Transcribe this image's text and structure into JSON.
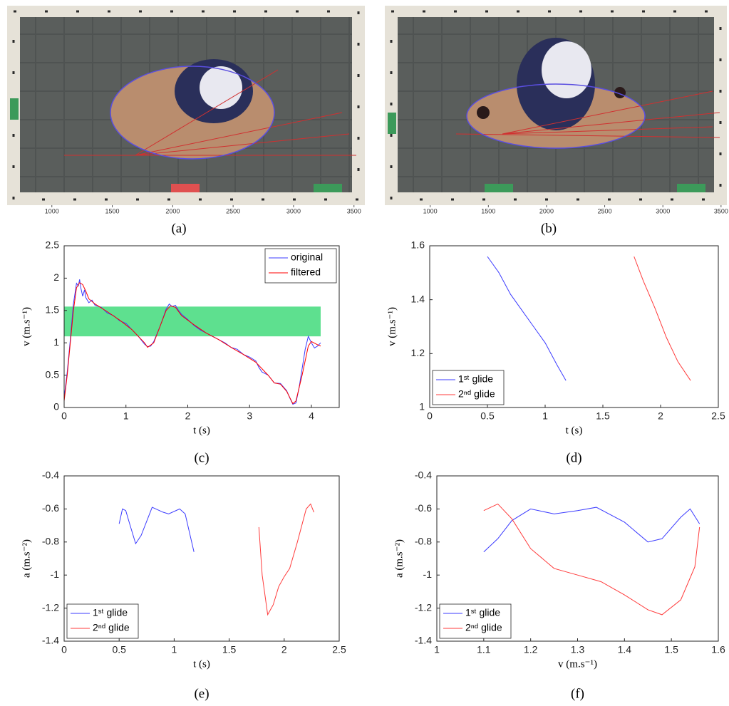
{
  "chart_data": [
    {
      "type": "image",
      "caption": "(a)",
      "xlim": [
        630,
        3590
      ],
      "xticks": [
        1000,
        1500,
        2000,
        2500,
        3000,
        3500
      ]
    },
    {
      "type": "image",
      "caption": "(b)",
      "xlim": [
        610,
        3550
      ],
      "xticks": [
        1000,
        1500,
        2000,
        2500,
        3000,
        3500
      ]
    },
    {
      "type": "line",
      "caption": "(c)",
      "xlabel": "t (s)",
      "ylabel": "v (m.s⁻¹)",
      "xlim": [
        0,
        4.45
      ],
      "xticks": [
        0,
        1,
        2,
        3,
        4
      ],
      "ylim": [
        0,
        2.5
      ],
      "yticks": [
        0,
        0.5,
        1,
        1.5,
        2,
        2.5
      ],
      "legend": "upper right",
      "band": {
        "x": [
          0,
          4.15
        ],
        "y": [
          1.1,
          1.56
        ],
        "color": "#5ee08f"
      },
      "series": [
        {
          "name": "original",
          "color": "#3b3bff",
          "x": [
            0,
            0.05,
            0.1,
            0.15,
            0.2,
            0.23,
            0.25,
            0.27,
            0.3,
            0.33,
            0.35,
            0.4,
            0.45,
            0.5,
            0.6,
            0.7,
            0.8,
            0.9,
            1.0,
            1.1,
            1.2,
            1.3,
            1.35,
            1.4,
            1.45,
            1.55,
            1.65,
            1.7,
            1.75,
            1.8,
            1.85,
            1.9,
            2.0,
            2.1,
            2.2,
            2.3,
            2.4,
            2.5,
            2.6,
            2.7,
            2.8,
            2.9,
            3.0,
            3.1,
            3.15,
            3.2,
            3.3,
            3.4,
            3.5,
            3.6,
            3.65,
            3.7,
            3.75,
            3.8,
            3.85,
            3.9,
            3.95,
            4.0,
            4.05,
            4.1,
            4.15
          ],
          "values": [
            0.15,
            0.55,
            1.05,
            1.6,
            1.92,
            1.88,
            1.98,
            1.85,
            1.72,
            1.82,
            1.7,
            1.62,
            1.66,
            1.58,
            1.55,
            1.46,
            1.42,
            1.34,
            1.3,
            1.2,
            1.1,
            0.98,
            0.94,
            0.95,
            1.02,
            1.25,
            1.52,
            1.6,
            1.56,
            1.58,
            1.5,
            1.44,
            1.36,
            1.27,
            1.2,
            1.15,
            1.1,
            1.05,
            1.0,
            0.93,
            0.9,
            0.82,
            0.78,
            0.72,
            0.62,
            0.55,
            0.5,
            0.38,
            0.37,
            0.26,
            0.15,
            0.05,
            0.07,
            0.3,
            0.6,
            0.9,
            1.1,
            1.0,
            0.92,
            0.95,
            1.0
          ]
        },
        {
          "name": "filtered",
          "color": "#ff0000",
          "x": [
            0,
            0.05,
            0.1,
            0.15,
            0.2,
            0.25,
            0.3,
            0.35,
            0.4,
            0.5,
            0.7,
            0.9,
            1.1,
            1.3,
            1.35,
            1.45,
            1.55,
            1.65,
            1.72,
            1.8,
            1.9,
            2.1,
            2.3,
            2.5,
            2.7,
            2.9,
            3.1,
            3.3,
            3.4,
            3.5,
            3.6,
            3.7,
            3.75,
            3.85,
            3.95,
            4.0,
            4.1,
            4.15
          ],
          "values": [
            0.1,
            0.5,
            1.0,
            1.5,
            1.85,
            1.93,
            1.9,
            1.8,
            1.68,
            1.6,
            1.48,
            1.35,
            1.2,
            1.0,
            0.93,
            1.0,
            1.25,
            1.5,
            1.57,
            1.55,
            1.42,
            1.28,
            1.15,
            1.05,
            0.93,
            0.82,
            0.7,
            0.5,
            0.38,
            0.36,
            0.25,
            0.06,
            0.1,
            0.5,
            0.95,
            1.02,
            0.97,
            0.95
          ]
        }
      ]
    },
    {
      "type": "line",
      "caption": "(d)",
      "xlabel": "t (s)",
      "ylabel": "v (m.s⁻¹)",
      "xlim": [
        0,
        2.5
      ],
      "xticks": [
        0,
        0.5,
        1,
        1.5,
        2,
        2.5
      ],
      "ylim": [
        1,
        1.6
      ],
      "yticks": [
        1,
        1.2,
        1.4,
        1.6
      ],
      "legend": "lower left",
      "series": [
        {
          "name": "1ˢᵗ glide",
          "color": "#3b3bff",
          "x": [
            0.5,
            0.6,
            0.7,
            0.8,
            0.9,
            1.0,
            1.1,
            1.18
          ],
          "values": [
            1.56,
            1.5,
            1.42,
            1.36,
            1.3,
            1.24,
            1.16,
            1.1
          ]
        },
        {
          "name": "2ⁿᵈ glide",
          "color": "#ff3b3b",
          "x": [
            1.77,
            1.85,
            1.95,
            2.05,
            2.15,
            2.26
          ],
          "values": [
            1.56,
            1.47,
            1.37,
            1.26,
            1.17,
            1.1
          ]
        }
      ]
    },
    {
      "type": "line",
      "caption": "(e)",
      "xlabel": "t (s)",
      "ylabel": "a (m.s⁻²)",
      "xlim": [
        0,
        2.5
      ],
      "xticks": [
        0,
        0.5,
        1,
        1.5,
        2,
        2.5
      ],
      "ylim": [
        -1.4,
        -0.4
      ],
      "yticks": [
        -1.4,
        -1.2,
        -1,
        -0.8,
        -0.6,
        -0.4
      ],
      "legend": "lower left",
      "series": [
        {
          "name": "1ˢᵗ glide",
          "color": "#3b3bff",
          "x": [
            0.5,
            0.53,
            0.56,
            0.6,
            0.65,
            0.7,
            0.8,
            0.9,
            0.95,
            1.05,
            1.1,
            1.18
          ],
          "values": [
            -0.69,
            -0.6,
            -0.61,
            -0.7,
            -0.81,
            -0.76,
            -0.59,
            -0.62,
            -0.63,
            -0.6,
            -0.63,
            -0.86
          ]
        },
        {
          "name": "2ⁿᵈ glide",
          "color": "#ff3b3b",
          "x": [
            1.77,
            1.8,
            1.85,
            1.9,
            1.95,
            2.0,
            2.05,
            2.12,
            2.2,
            2.24,
            2.27
          ],
          "values": [
            -0.71,
            -1.0,
            -1.24,
            -1.18,
            -1.07,
            -1.01,
            -0.96,
            -0.8,
            -0.6,
            -0.57,
            -0.62
          ]
        }
      ]
    },
    {
      "type": "line",
      "caption": "(f)",
      "xlabel": "v (m.s⁻¹)",
      "ylabel": "a (m.s⁻²)",
      "xlim": [
        1,
        1.6
      ],
      "xticks": [
        1,
        1.1,
        1.2,
        1.3,
        1.4,
        1.5,
        1.6
      ],
      "ylim": [
        -1.4,
        -0.4
      ],
      "yticks": [
        -1.4,
        -1.2,
        -1,
        -0.8,
        -0.6,
        -0.4
      ],
      "legend": "lower left",
      "series": [
        {
          "name": "1ˢᵗ glide",
          "color": "#3b3bff",
          "x": [
            1.1,
            1.13,
            1.16,
            1.2,
            1.25,
            1.3,
            1.34,
            1.4,
            1.45,
            1.48,
            1.52,
            1.54,
            1.56
          ],
          "values": [
            -0.86,
            -0.78,
            -0.67,
            -0.6,
            -0.63,
            -0.61,
            -0.59,
            -0.68,
            -0.8,
            -0.78,
            -0.65,
            -0.6,
            -0.69
          ]
        },
        {
          "name": "2ⁿᵈ glide",
          "color": "#ff3b3b",
          "x": [
            1.1,
            1.13,
            1.16,
            1.2,
            1.25,
            1.3,
            1.35,
            1.4,
            1.45,
            1.48,
            1.52,
            1.55,
            1.56
          ],
          "values": [
            -0.61,
            -0.57,
            -0.66,
            -0.84,
            -0.96,
            -1.0,
            -1.04,
            -1.12,
            -1.21,
            -1.24,
            -1.15,
            -0.95,
            -0.71
          ]
        }
      ]
    }
  ]
}
